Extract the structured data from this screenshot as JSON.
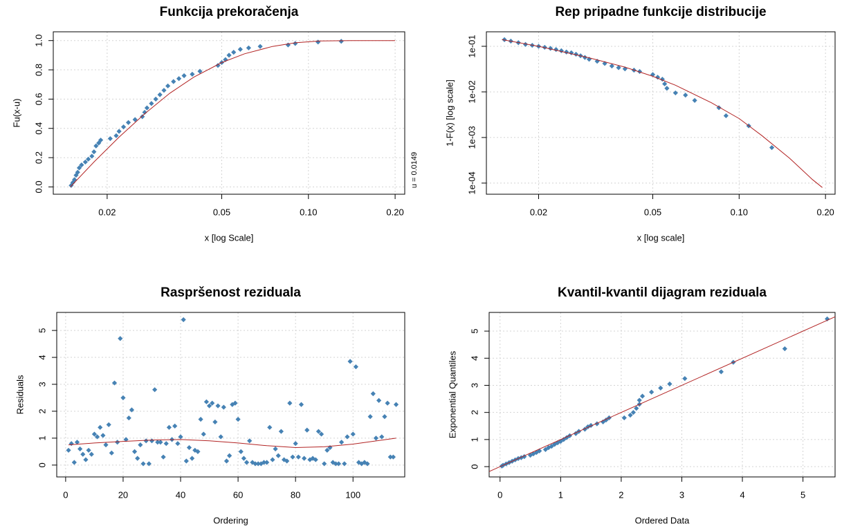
{
  "chart_data": [
    {
      "type": "scatter",
      "title": "Funkcija prekoračenja",
      "x_label": "x [log Scale]",
      "y_label": "Fu(x-u)",
      "annotation": "u = 0.0149",
      "log_x": true,
      "log_y": false,
      "grid": true,
      "xlim": [
        0.013,
        0.216
      ],
      "ylim": [
        -0.05,
        1.06
      ],
      "xticks": [
        0.02,
        0.05,
        {
          "value": 0.1,
          "label": "0.10"
        },
        {
          "value": 0.2,
          "label": "0.20"
        }
      ],
      "yticks": [
        {
          "value": 0,
          "label": "0.0"
        },
        0.2,
        0.4,
        0.6,
        0.8,
        {
          "value": 1,
          "label": "1.0"
        }
      ],
      "series": [
        {
          "style": "points",
          "color": "#4682b4",
          "x": [
            0.015,
            0.0152,
            0.0154,
            0.0156,
            0.0158,
            0.016,
            0.0163,
            0.0168,
            0.0172,
            0.0177,
            0.018,
            0.0183,
            0.0187,
            0.019,
            0.0205,
            0.0215,
            0.022,
            0.0228,
            0.0237,
            0.025,
            0.0265,
            0.027,
            0.0275,
            0.0285,
            0.0295,
            0.0305,
            0.0315,
            0.0325,
            0.034,
            0.0355,
            0.037,
            0.0395,
            0.042,
            0.0485,
            0.05,
            0.0515,
            0.053,
            0.055,
            0.058,
            0.062,
            0.068,
            0.085,
            0.09,
            0.108,
            0.13
          ],
          "values": [
            0.01,
            0.03,
            0.05,
            0.08,
            0.1,
            0.13,
            0.15,
            0.17,
            0.19,
            0.21,
            0.24,
            0.28,
            0.3,
            0.32,
            0.33,
            0.35,
            0.38,
            0.41,
            0.44,
            0.46,
            0.48,
            0.51,
            0.54,
            0.57,
            0.6,
            0.63,
            0.66,
            0.69,
            0.72,
            0.74,
            0.76,
            0.77,
            0.79,
            0.83,
            0.85,
            0.87,
            0.9,
            0.92,
            0.94,
            0.95,
            0.96,
            0.97,
            0.98,
            0.99,
            0.995
          ]
        },
        {
          "style": "line",
          "color": "#b22222",
          "x": [
            0.0149,
            0.018,
            0.022,
            0.027,
            0.033,
            0.04,
            0.05,
            0.06,
            0.075,
            0.09,
            0.11,
            0.14,
            0.17,
            0.2
          ],
          "values": [
            0,
            0.17,
            0.34,
            0.5,
            0.64,
            0.75,
            0.85,
            0.91,
            0.96,
            0.985,
            0.997,
            1,
            1,
            1
          ]
        }
      ]
    },
    {
      "type": "scatter",
      "title": "Rep pripadne funkcije distribucije",
      "x_label": "x [log scale]",
      "y_label": "1-F(x) [log scale]",
      "log_x": true,
      "log_y": true,
      "grid": true,
      "xlim": [
        0.01315,
        0.216
      ],
      "ylim": [
        5.7e-05,
        0.208
      ],
      "xticks": [
        0.02,
        0.05,
        {
          "value": 0.1,
          "label": "0.10"
        },
        {
          "value": 0.2,
          "label": "0.20"
        }
      ],
      "yticks": [
        {
          "value": 0.0001,
          "label": "1e-04"
        },
        {
          "value": 0.001,
          "label": "1e-03"
        },
        {
          "value": 0.01,
          "label": "1e-02"
        },
        {
          "value": 0.1,
          "label": "1e-01"
        }
      ],
      "series": [
        {
          "style": "points",
          "color": "#4682b4",
          "x": [
            0.0152,
            0.016,
            0.017,
            0.018,
            0.019,
            0.02,
            0.021,
            0.022,
            0.023,
            0.024,
            0.025,
            0.026,
            0.027,
            0.028,
            0.029,
            0.03,
            0.032,
            0.034,
            0.036,
            0.038,
            0.04,
            0.043,
            0.045,
            0.05,
            0.052,
            0.054,
            0.055,
            0.056,
            0.06,
            0.065,
            0.07,
            0.085,
            0.09,
            0.108,
            0.13
          ],
          "values": [
            0.14,
            0.13,
            0.12,
            0.11,
            0.105,
            0.1,
            0.095,
            0.09,
            0.085,
            0.08,
            0.075,
            0.072,
            0.067,
            0.062,
            0.057,
            0.052,
            0.047,
            0.042,
            0.037,
            0.034,
            0.032,
            0.03,
            0.028,
            0.024,
            0.021,
            0.019,
            0.015,
            0.012,
            0.0095,
            0.0085,
            0.0065,
            0.0045,
            0.003,
            0.0018,
            0.0006
          ]
        },
        {
          "style": "line",
          "color": "#b22222",
          "x": [
            0.0149,
            0.02,
            0.03,
            0.04,
            0.05,
            0.06,
            0.08,
            0.1,
            0.12,
            0.15,
            0.18,
            0.195
          ],
          "values": [
            0.14,
            0.1,
            0.056,
            0.035,
            0.022,
            0.014,
            0.0058,
            0.0026,
            0.0011,
            0.00035,
            0.00012,
            8e-05
          ]
        }
      ]
    },
    {
      "type": "scatter",
      "title": "Raspršenost reziduala",
      "x_label": "Ordering",
      "y_label": "Residuals",
      "log_x": false,
      "log_y": false,
      "grid": true,
      "xlim": [
        -3.1,
        118
      ],
      "ylim": [
        -0.44,
        5.67
      ],
      "xticks": [
        0,
        20,
        40,
        60,
        80,
        100
      ],
      "yticks": [
        0,
        1,
        2,
        3,
        4,
        5
      ],
      "series": [
        {
          "style": "points",
          "color": "#4682b4",
          "x": [
            1,
            2,
            3,
            4,
            5,
            6,
            7,
            8,
            9,
            10,
            11,
            12,
            13,
            14,
            15,
            16,
            17,
            18,
            19,
            20,
            21,
            22,
            23,
            24,
            25,
            26,
            27,
            28,
            29,
            30,
            31,
            32,
            33,
            34,
            35,
            36,
            37,
            38,
            39,
            40,
            41,
            42,
            43,
            44,
            45,
            46,
            47,
            48,
            49,
            50,
            51,
            52,
            53,
            54,
            55,
            56,
            57,
            58,
            59,
            60,
            61,
            62,
            63,
            64,
            65,
            66,
            67,
            68,
            69,
            70,
            71,
            72,
            73,
            74,
            75,
            76,
            77,
            78,
            79,
            80,
            81,
            82,
            83,
            84,
            85,
            86,
            87,
            88,
            89,
            90,
            91,
            92,
            93,
            94,
            95,
            96,
            97,
            98,
            99,
            100,
            101,
            102,
            103,
            104,
            105,
            106,
            107,
            108,
            109,
            110,
            111,
            112,
            113,
            114,
            115
          ],
          "values": [
            0.55,
            0.8,
            0.1,
            0.85,
            0.6,
            0.4,
            0.2,
            0.55,
            0.4,
            1.15,
            1.05,
            1.4,
            1.1,
            0.75,
            1.5,
            0.45,
            3.05,
            0.85,
            4.7,
            2.5,
            0.95,
            1.75,
            2.05,
            0.5,
            0.25,
            0.75,
            0.05,
            0.9,
            0.05,
            0.9,
            2.8,
            0.85,
            0.85,
            0.3,
            0.8,
            1.4,
            0.95,
            1.45,
            0.8,
            1.05,
            5.4,
            0.15,
            0.65,
            0.25,
            0.55,
            0.5,
            1.7,
            1.15,
            2.35,
            2.2,
            2.3,
            1.6,
            2.2,
            1.05,
            2.15,
            0.15,
            0.35,
            2.25,
            2.3,
            1.7,
            0.5,
            0.25,
            0.1,
            0.9,
            0.1,
            0.05,
            0.05,
            0.05,
            0.1,
            0.1,
            1.4,
            0.2,
            0.6,
            0.35,
            1.25,
            0.2,
            0.15,
            2.3,
            0.3,
            0.8,
            0.3,
            2.25,
            0.25,
            1.3,
            0.2,
            0.25,
            0.2,
            1.25,
            1.15,
            0.05,
            0.55,
            0.65,
            0.1,
            0.05,
            0.05,
            0.85,
            0.05,
            1.05,
            3.85,
            1.15,
            3.65,
            0.1,
            0.05,
            0.1,
            0.05,
            1.8,
            2.65,
            1.0,
            2.4,
            1.05,
            1.8,
            2.3,
            0.3,
            0.3,
            2.25
          ]
        },
        {
          "style": "line",
          "color": "#b22222",
          "x": [
            1,
            10,
            20,
            30,
            40,
            50,
            60,
            70,
            80,
            90,
            100,
            115
          ],
          "values": [
            0.75,
            0.82,
            0.88,
            0.93,
            0.95,
            0.9,
            0.82,
            0.72,
            0.65,
            0.68,
            0.78,
            1.0
          ]
        }
      ]
    },
    {
      "type": "scatter",
      "title": "Kvantil-kvantil dijagram reziduala",
      "x_label": "Ordered Data",
      "y_label": "Exponential Quantiles",
      "log_x": false,
      "log_y": false,
      "grid": true,
      "xlim": [
        -0.18,
        5.53
      ],
      "ylim": [
        -0.38,
        5.69
      ],
      "xticks": [
        0,
        1,
        2,
        3,
        4,
        5
      ],
      "yticks": [
        0,
        1,
        2,
        3,
        4,
        5
      ],
      "series": [
        {
          "style": "points",
          "color": "#4682b4",
          "x": [
            0.03,
            0.05,
            0.1,
            0.15,
            0.2,
            0.25,
            0.3,
            0.35,
            0.4,
            0.5,
            0.55,
            0.6,
            0.65,
            0.75,
            0.8,
            0.85,
            0.9,
            0.95,
            1.0,
            1.05,
            1.1,
            1.15,
            1.25,
            1.3,
            1.4,
            1.45,
            1.5,
            1.6,
            1.7,
            1.75,
            1.8,
            2.05,
            2.15,
            2.2,
            2.25,
            2.3,
            2.3,
            2.35,
            2.5,
            2.65,
            2.8,
            3.05,
            3.65,
            3.85,
            4.7,
            5.4
          ],
          "values": [
            0.02,
            0.05,
            0.1,
            0.15,
            0.2,
            0.25,
            0.3,
            0.33,
            0.37,
            0.42,
            0.47,
            0.52,
            0.58,
            0.63,
            0.7,
            0.75,
            0.82,
            0.88,
            0.93,
            1.0,
            1.07,
            1.14,
            1.22,
            1.3,
            1.38,
            1.47,
            1.52,
            1.58,
            1.65,
            1.72,
            1.8,
            1.8,
            1.9,
            2.0,
            2.15,
            2.3,
            2.45,
            2.6,
            2.75,
            2.9,
            3.05,
            3.25,
            3.5,
            3.85,
            4.35,
            5.45
          ]
        },
        {
          "style": "line",
          "color": "#b22222",
          "x": [
            -0.18,
            5.53
          ],
          "values": [
            -0.18,
            5.53
          ]
        }
      ]
    }
  ]
}
